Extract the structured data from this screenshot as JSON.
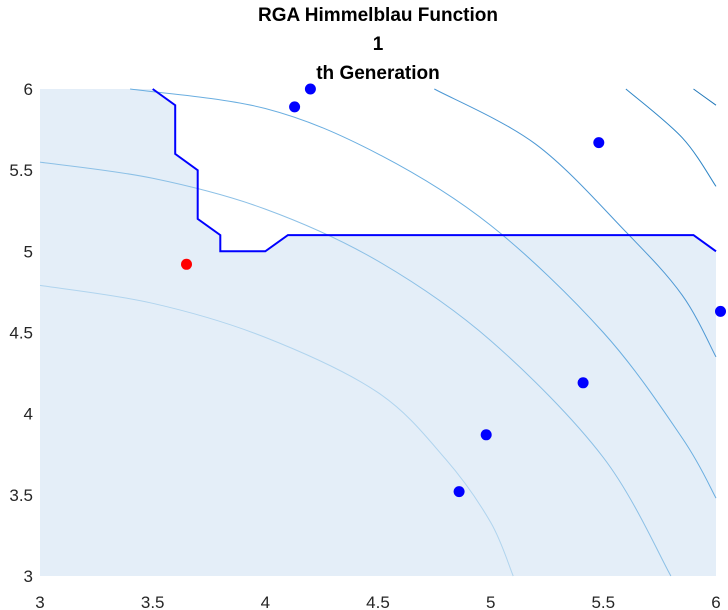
{
  "chart_data": {
    "type": "scatter",
    "title_lines": [
      "RGA Himmelblau Function",
      "1",
      "th Generation"
    ],
    "xlim": [
      3,
      6
    ],
    "ylim": [
      3,
      6
    ],
    "x_ticks": [
      "3",
      "3.5",
      "4",
      "4.5",
      "5",
      "5.5",
      "6"
    ],
    "y_ticks": [
      "3",
      "3.5",
      "4",
      "4.5",
      "5",
      "5.5",
      "6"
    ],
    "grid": false,
    "colors": {
      "region_fill": "#e4eef8",
      "boundary": "#0000ff",
      "population": "#0000ff",
      "best": "#ff0000",
      "contours": [
        "#b0d4ee",
        "#8cc0e6",
        "#6aaee0",
        "#4d98d4",
        "#2f86c6",
        "#1f76b8"
      ]
    },
    "population": [
      {
        "x": 4.13,
        "y": 5.89
      },
      {
        "x": 4.2,
        "y": 6.0
      },
      {
        "x": 5.48,
        "y": 5.67
      },
      {
        "x": 6.02,
        "y": 4.63
      },
      {
        "x": 5.41,
        "y": 4.19
      },
      {
        "x": 4.98,
        "y": 3.87
      },
      {
        "x": 4.86,
        "y": 3.52
      }
    ],
    "best": {
      "x": 3.65,
      "y": 4.92
    },
    "boundary": [
      [
        3.5,
        6.0
      ],
      [
        3.6,
        5.9
      ],
      [
        3.6,
        5.6
      ],
      [
        3.7,
        5.5
      ],
      [
        3.7,
        5.2
      ],
      [
        3.8,
        5.1
      ],
      [
        3.8,
        5.0
      ],
      [
        4.0,
        5.0
      ],
      [
        4.1,
        5.1
      ],
      [
        5.9,
        5.1
      ],
      [
        6.0,
        5.0
      ]
    ],
    "feasible_region": [
      [
        3.0,
        3.0
      ],
      [
        3.0,
        6.0
      ],
      [
        3.5,
        6.0
      ],
      [
        3.6,
        5.9
      ],
      [
        3.6,
        5.6
      ],
      [
        3.7,
        5.5
      ],
      [
        3.7,
        5.2
      ],
      [
        3.8,
        5.1
      ],
      [
        3.8,
        5.0
      ],
      [
        4.0,
        5.0
      ],
      [
        4.1,
        5.1
      ],
      [
        5.9,
        5.1
      ],
      [
        6.0,
        5.0
      ],
      [
        6.0,
        3.0
      ]
    ],
    "contours": [
      {
        "level": 150,
        "points": [
          [
            3.0,
            4.79
          ],
          [
            3.5,
            4.68
          ],
          [
            4.0,
            4.47
          ],
          [
            4.5,
            4.13
          ],
          [
            4.8,
            3.72
          ],
          [
            5.0,
            3.33
          ],
          [
            5.1,
            3.0
          ]
        ]
      },
      {
        "level": 250,
        "points": [
          [
            3.0,
            5.55
          ],
          [
            3.5,
            5.45
          ],
          [
            4.0,
            5.26
          ],
          [
            4.5,
            4.94
          ],
          [
            5.0,
            4.45
          ],
          [
            5.5,
            3.73
          ],
          [
            5.8,
            3.0
          ]
        ]
      },
      {
        "level": 350,
        "points": [
          [
            3.4,
            6.0
          ],
          [
            4.0,
            5.88
          ],
          [
            4.5,
            5.6
          ],
          [
            5.0,
            5.16
          ],
          [
            5.5,
            4.5
          ],
          [
            5.85,
            3.85
          ],
          [
            6.0,
            3.48
          ]
        ]
      },
      {
        "level": 450,
        "points": [
          [
            4.75,
            6.0
          ],
          [
            5.2,
            5.66
          ],
          [
            5.6,
            5.12
          ],
          [
            5.85,
            4.73
          ],
          [
            6.0,
            4.35
          ]
        ]
      },
      {
        "level": 550,
        "points": [
          [
            5.6,
            6.0
          ],
          [
            5.85,
            5.7
          ],
          [
            6.0,
            5.4
          ]
        ]
      },
      {
        "level": 650,
        "points": [
          [
            5.9,
            6.0
          ],
          [
            6.0,
            5.9
          ]
        ]
      }
    ]
  }
}
